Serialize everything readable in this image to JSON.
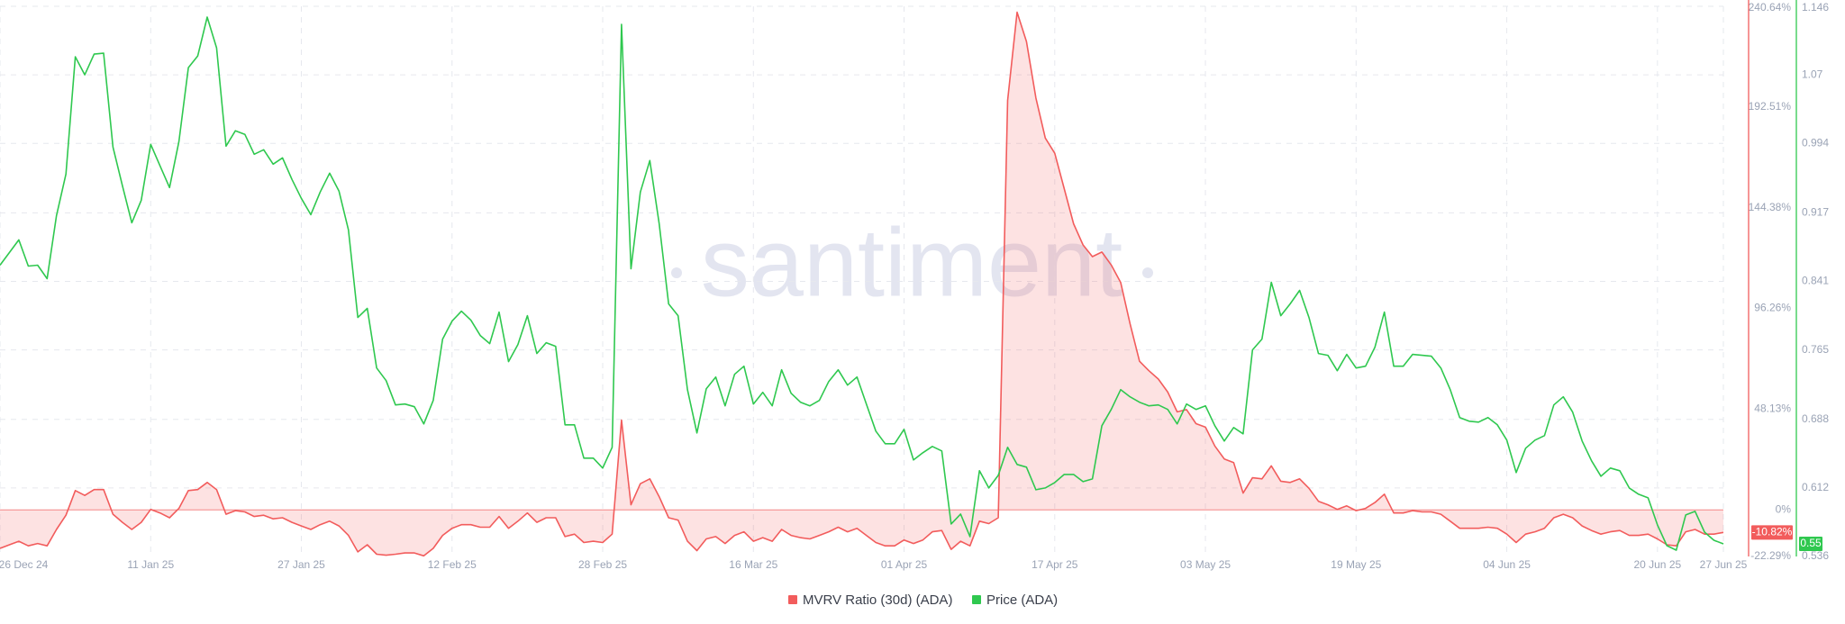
{
  "chart_data": {
    "type": "line",
    "watermark": "santiment",
    "x": [
      "2024-12-26",
      "2024-12-27",
      "2024-12-28",
      "2024-12-29",
      "2024-12-30",
      "2024-12-31",
      "2025-01-01",
      "2025-01-02",
      "2025-01-03",
      "2025-01-04",
      "2025-01-05",
      "2025-01-06",
      "2025-01-07",
      "2025-01-08",
      "2025-01-09",
      "2025-01-10",
      "2025-01-11",
      "2025-01-12",
      "2025-01-13",
      "2025-01-14",
      "2025-01-15",
      "2025-01-16",
      "2025-01-17",
      "2025-01-18",
      "2025-01-19",
      "2025-01-20",
      "2025-01-21",
      "2025-01-22",
      "2025-01-23",
      "2025-01-24",
      "2025-01-25",
      "2025-01-26",
      "2025-01-27",
      "2025-01-28",
      "2025-01-29",
      "2025-01-30",
      "2025-01-31",
      "2025-02-01",
      "2025-02-02",
      "2025-02-03",
      "2025-02-04",
      "2025-02-05",
      "2025-02-06",
      "2025-02-07",
      "2025-02-08",
      "2025-02-09",
      "2025-02-10",
      "2025-02-11",
      "2025-02-12",
      "2025-02-13",
      "2025-02-14",
      "2025-02-15",
      "2025-02-16",
      "2025-02-17",
      "2025-02-18",
      "2025-02-19",
      "2025-02-20",
      "2025-02-21",
      "2025-02-22",
      "2025-02-23",
      "2025-02-24",
      "2025-02-25",
      "2025-02-26",
      "2025-02-27",
      "2025-02-28",
      "2025-03-01",
      "2025-03-02",
      "2025-03-03",
      "2025-03-04",
      "2025-03-05",
      "2025-03-06",
      "2025-03-07",
      "2025-03-08",
      "2025-03-09",
      "2025-03-10",
      "2025-03-11",
      "2025-03-12",
      "2025-03-13",
      "2025-03-14",
      "2025-03-15",
      "2025-03-16",
      "2025-03-17",
      "2025-03-18",
      "2025-03-19",
      "2025-03-20",
      "2025-03-21",
      "2025-03-22",
      "2025-03-23",
      "2025-03-24",
      "2025-03-25",
      "2025-03-26",
      "2025-03-27",
      "2025-03-28",
      "2025-03-29",
      "2025-03-30",
      "2025-03-31",
      "2025-04-01",
      "2025-04-02",
      "2025-04-03",
      "2025-04-04",
      "2025-04-05",
      "2025-04-06",
      "2025-04-07",
      "2025-04-08",
      "2025-04-09",
      "2025-04-10",
      "2025-04-11",
      "2025-04-12",
      "2025-04-13",
      "2025-04-14",
      "2025-04-15",
      "2025-04-16",
      "2025-04-17",
      "2025-04-18",
      "2025-04-19",
      "2025-04-20",
      "2025-04-21",
      "2025-04-22",
      "2025-04-23",
      "2025-04-24",
      "2025-04-25",
      "2025-04-26",
      "2025-04-27",
      "2025-04-28",
      "2025-04-29",
      "2025-04-30",
      "2025-05-01",
      "2025-05-02",
      "2025-05-03",
      "2025-05-04",
      "2025-05-05",
      "2025-05-06",
      "2025-05-07",
      "2025-05-08",
      "2025-05-09",
      "2025-05-10",
      "2025-05-11",
      "2025-05-12",
      "2025-05-13",
      "2025-05-14",
      "2025-05-15",
      "2025-05-16",
      "2025-05-17",
      "2025-05-18",
      "2025-05-19",
      "2025-05-20",
      "2025-05-21",
      "2025-05-22",
      "2025-05-23",
      "2025-05-24",
      "2025-05-25",
      "2025-05-26",
      "2025-05-27",
      "2025-05-28",
      "2025-05-29",
      "2025-05-30",
      "2025-05-31",
      "2025-06-01",
      "2025-06-02",
      "2025-06-03",
      "2025-06-04",
      "2025-06-05",
      "2025-06-06",
      "2025-06-07",
      "2025-06-08",
      "2025-06-09",
      "2025-06-10",
      "2025-06-11",
      "2025-06-12",
      "2025-06-13",
      "2025-06-14",
      "2025-06-15",
      "2025-06-16",
      "2025-06-17",
      "2025-06-18",
      "2025-06-19",
      "2025-06-20",
      "2025-06-21",
      "2025-06-22",
      "2025-06-23",
      "2025-06-24",
      "2025-06-25",
      "2025-06-26",
      "2025-06-27"
    ],
    "xlim": [
      "2024-12-26",
      "2025-06-27"
    ],
    "xticks": [
      {
        "value": "2024-12-26",
        "label": "26 Dec 24"
      },
      {
        "value": "2025-01-11",
        "label": "11 Jan 25"
      },
      {
        "value": "2025-01-27",
        "label": "27 Jan 25"
      },
      {
        "value": "2025-02-12",
        "label": "12 Feb 25"
      },
      {
        "value": "2025-02-28",
        "label": "28 Feb 25"
      },
      {
        "value": "2025-03-16",
        "label": "16 Mar 25"
      },
      {
        "value": "2025-04-01",
        "label": "01 Apr 25"
      },
      {
        "value": "2025-04-17",
        "label": "17 Apr 25"
      },
      {
        "value": "2025-05-03",
        "label": "03 May 25"
      },
      {
        "value": "2025-05-19",
        "label": "19 May 25"
      },
      {
        "value": "2025-06-04",
        "label": "04 Jun 25"
      },
      {
        "value": "2025-06-20",
        "label": "20 Jun 25"
      },
      {
        "value": "2025-06-27",
        "label": "27 Jun 25"
      }
    ],
    "ylim": [
      -22.29,
      240.64
    ],
    "yticks": [
      {
        "value": -22.29,
        "label": "-22.29%"
      },
      {
        "value": 0,
        "label": "0%"
      },
      {
        "value": 48.13,
        "label": "48.13%"
      },
      {
        "value": 96.26,
        "label": "96.26%"
      },
      {
        "value": 144.38,
        "label": "144.38%"
      },
      {
        "value": 192.51,
        "label": "192.51%"
      },
      {
        "value": 240.64,
        "label": "240.64%"
      }
    ],
    "y2lim": [
      0.536,
      1.146
    ],
    "y2ticks": [
      0.536,
      0.612,
      0.688,
      0.765,
      0.841,
      0.917,
      0.994,
      1.07,
      1.146
    ],
    "grid": true,
    "legend": "bottom",
    "series": [
      {
        "name": "MVRV Ratio (30d) (ADA)",
        "color": "#f25c5c",
        "axis": "y",
        "fill_area": true,
        "last_value_label": "-10.82%",
        "values": [
          -18.4,
          -16.7,
          -15.0,
          -17.2,
          -16.1,
          -17.2,
          -9.4,
          -2.6,
          9.2,
          6.9,
          9.7,
          9.7,
          -2.1,
          -6.0,
          -9.4,
          -6.0,
          0.2,
          -1.5,
          -3.8,
          0.7,
          9.2,
          9.7,
          13.1,
          9.7,
          -2.1,
          -0.4,
          -1.0,
          -3.2,
          -2.6,
          -4.3,
          -3.8,
          -6.0,
          -7.7,
          -9.4,
          -7.1,
          -5.4,
          -7.7,
          -12.2,
          -20.1,
          -16.7,
          -21.2,
          -21.7,
          -21.2,
          -20.6,
          -20.6,
          -22.0,
          -18.4,
          -12.2,
          -8.8,
          -7.1,
          -7.1,
          -8.3,
          -8.3,
          -3.2,
          -8.8,
          -5.4,
          -1.5,
          -6.0,
          -3.8,
          -3.8,
          -12.8,
          -11.6,
          -15.6,
          -15.0,
          -15.6,
          -11.6,
          42.9,
          2.4,
          12.5,
          14.8,
          6.3,
          -3.8,
          -4.9,
          -15.0,
          -19.5,
          -13.9,
          -12.8,
          -16.1,
          -12.2,
          -10.5,
          -15.0,
          -13.3,
          -15.0,
          -9.4,
          -12.2,
          -13.3,
          -13.9,
          -12.2,
          -10.5,
          -8.3,
          -10.5,
          -8.8,
          -12.2,
          -15.6,
          -17.2,
          -17.2,
          -14.4,
          -16.1,
          -14.4,
          -10.5,
          -9.9,
          -18.9,
          -15.0,
          -17.2,
          -5.4,
          -6.6,
          -3.8,
          195.7,
          237.8,
          223.8,
          196.8,
          177.7,
          170.4,
          153.5,
          136.7,
          126.6,
          121.0,
          123.2,
          117.0,
          108.6,
          88.9,
          71.0,
          66.5,
          62.5,
          56.3,
          46.8,
          47.9,
          41.2,
          39.5,
          30.5,
          24.3,
          22.6,
          8.0,
          15.3,
          14.8,
          21.0,
          13.7,
          13.1,
          14.8,
          10.3,
          4.1,
          2.4,
          0.2,
          1.9,
          -0.4,
          0.7,
          3.5,
          7.5,
          -1.5,
          -1.5,
          -0.4,
          -1.0,
          -1.0,
          -2.1,
          -5.4,
          -8.8,
          -8.8,
          -8.8,
          -8.3,
          -8.8,
          -11.6,
          -15.6,
          -11.6,
          -10.5,
          -8.8,
          -3.8,
          -2.1,
          -3.8,
          -7.7,
          -9.9,
          -11.6,
          -10.5,
          -9.9,
          -12.2,
          -12.2,
          -11.6,
          -13.9,
          -16.7,
          -17.2,
          -10.5,
          -9.4,
          -11.6,
          -11.6,
          -10.82
        ]
      },
      {
        "name": "Price (ADA)",
        "color": "#2fc84f",
        "axis": "y2",
        "fill_area": false,
        "last_value_label": "0.55",
        "values": [
          0.859,
          0.873,
          0.887,
          0.858,
          0.859,
          0.844,
          0.914,
          0.96,
          1.09,
          1.07,
          1.093,
          1.094,
          0.99,
          0.947,
          0.906,
          0.931,
          0.993,
          0.969,
          0.945,
          0.996,
          1.078,
          1.091,
          1.134,
          1.1,
          0.991,
          1.008,
          1.004,
          0.982,
          0.987,
          0.971,
          0.978,
          0.954,
          0.933,
          0.915,
          0.94,
          0.961,
          0.941,
          0.898,
          0.801,
          0.811,
          0.745,
          0.731,
          0.704,
          0.705,
          0.702,
          0.683,
          0.709,
          0.777,
          0.797,
          0.808,
          0.798,
          0.781,
          0.772,
          0.807,
          0.752,
          0.771,
          0.803,
          0.761,
          0.773,
          0.769,
          0.682,
          0.682,
          0.645,
          0.645,
          0.634,
          0.657,
          1.126,
          0.855,
          0.94,
          0.975,
          0.905,
          0.816,
          0.803,
          0.721,
          0.673,
          0.722,
          0.735,
          0.703,
          0.738,
          0.747,
          0.705,
          0.718,
          0.703,
          0.743,
          0.717,
          0.707,
          0.703,
          0.709,
          0.73,
          0.743,
          0.726,
          0.735,
          0.705,
          0.675,
          0.661,
          0.661,
          0.677,
          0.643,
          0.651,
          0.658,
          0.653,
          0.572,
          0.583,
          0.558,
          0.631,
          0.612,
          0.626,
          0.657,
          0.638,
          0.635,
          0.61,
          0.612,
          0.618,
          0.627,
          0.627,
          0.619,
          0.622,
          0.681,
          0.699,
          0.721,
          0.713,
          0.707,
          0.703,
          0.704,
          0.699,
          0.683,
          0.705,
          0.699,
          0.703,
          0.681,
          0.664,
          0.679,
          0.672,
          0.765,
          0.777,
          0.84,
          0.803,
          0.816,
          0.831,
          0.801,
          0.761,
          0.759,
          0.742,
          0.76,
          0.745,
          0.747,
          0.768,
          0.807,
          0.747,
          0.747,
          0.76,
          0.759,
          0.758,
          0.745,
          0.721,
          0.69,
          0.686,
          0.685,
          0.69,
          0.682,
          0.665,
          0.629,
          0.656,
          0.665,
          0.67,
          0.704,
          0.713,
          0.696,
          0.664,
          0.642,
          0.625,
          0.634,
          0.631,
          0.612,
          0.605,
          0.601,
          0.571,
          0.548,
          0.543,
          0.582,
          0.586,
          0.563,
          0.554,
          0.55
        ]
      }
    ]
  }
}
